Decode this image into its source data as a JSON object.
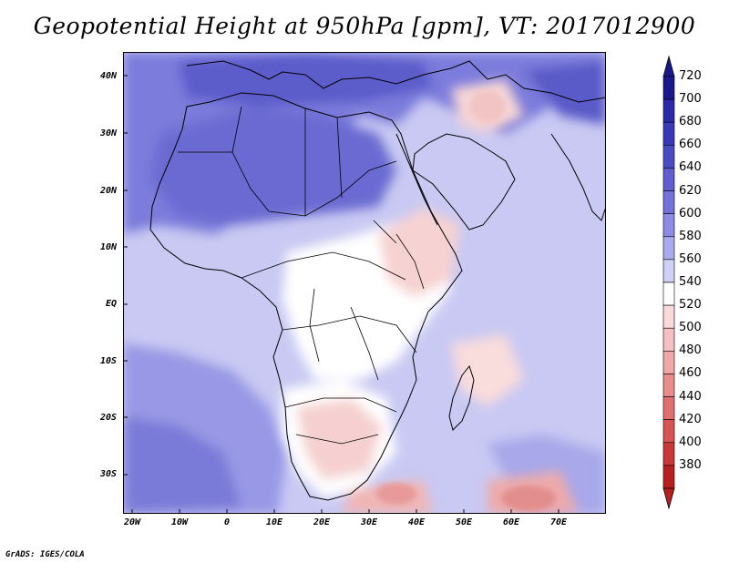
{
  "title": "Geopotential Height at 950hPa [gpm], VT: 2017012900",
  "credit": "GrADS: IGES/COLA",
  "lat_labels": [
    "40N",
    "30N",
    "20N",
    "10N",
    "EQ",
    "10S",
    "20S",
    "30S"
  ],
  "lon_labels": [
    "20W",
    "10W",
    "0",
    "10E",
    "20E",
    "30E",
    "40E",
    "50E",
    "60E",
    "70E"
  ],
  "colorbar": {
    "levels": [
      "720",
      "700",
      "680",
      "660",
      "640",
      "620",
      "600",
      "580",
      "560",
      "540",
      "520",
      "500",
      "480",
      "460",
      "440",
      "420",
      "400",
      "380"
    ],
    "colors": [
      "#1a1a8c",
      "#2a2aa8",
      "#3838b8",
      "#4a4ac4",
      "#5e5ed0",
      "#7272dc",
      "#8c8ce6",
      "#aaaaee",
      "#d0d0f6",
      "#ffffff",
      "#fadada",
      "#f5c0c0",
      "#f0a8a8",
      "#e88c8c",
      "#e07070",
      "#d85454",
      "#c83838",
      "#b82020"
    ]
  },
  "map_colors": {
    "ocean_base": "#c8c8f4",
    "high_dark": "#6a6ad6",
    "high_mid": "#8e8ee8",
    "low_light": "#fbe0e0",
    "low_mid": "#f4c2c2",
    "neutral": "#ffffff"
  }
}
